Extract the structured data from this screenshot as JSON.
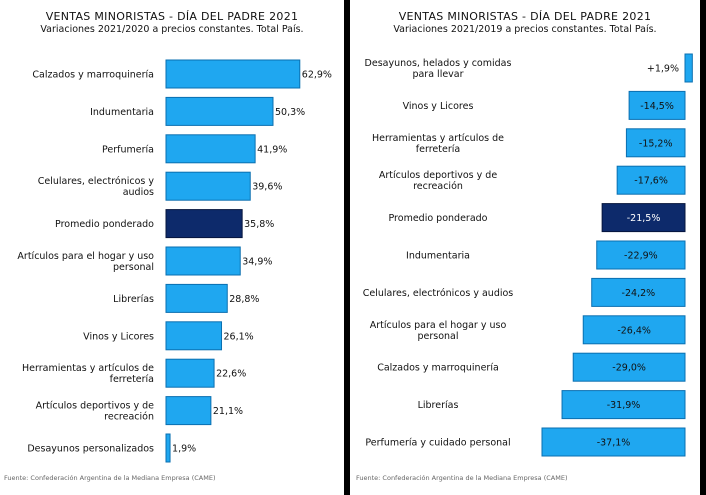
{
  "colors": {
    "bar": "#1fa7f0",
    "bar_stroke": "#0a6fb0",
    "highlight": "#0d2a6b",
    "highlight_stroke": "#05153d",
    "label": "#111111"
  },
  "chart_data": [
    {
      "type": "bar",
      "orientation": "horizontal",
      "title": "VENTAS MINORISTAS - DÍA DEL PADRE 2021",
      "subtitle": "Variaciones 2021/2020 a precios constantes. Total País.",
      "source": "Fuente: Confederación Argentina de la Mediana Empresa (CAME)",
      "categories": [
        [
          "Calzados y marroquinería"
        ],
        [
          "Indumentaria"
        ],
        [
          "Perfumería"
        ],
        [
          "Celulares, electrónicos y",
          "audios"
        ],
        [
          "Promedio ponderado"
        ],
        [
          "Artículos para el hogar y uso",
          "personal"
        ],
        [
          "Librerías"
        ],
        [
          "Vinos y Licores"
        ],
        [
          "Herramientas y artículos de",
          "ferretería"
        ],
        [
          "Artículos deportivos y de",
          "recreación"
        ],
        [
          "Desayunos personalizados"
        ]
      ],
      "values": [
        62.9,
        50.3,
        41.9,
        39.6,
        35.8,
        34.9,
        28.8,
        26.1,
        22.6,
        21.1,
        1.9
      ],
      "value_labels": [
        "62,9%",
        "50,3%",
        "41,9%",
        "39,6%",
        "35,8%",
        "34,9%",
        "28,8%",
        "26,1%",
        "22,6%",
        "21,1%",
        "1,9%"
      ],
      "highlight_index": 4,
      "xlim": [
        0,
        63
      ]
    },
    {
      "type": "bar",
      "orientation": "horizontal",
      "title": "VENTAS MINORISTAS - DÍA DEL PADRE 2021",
      "subtitle": "Variaciones 2021/2019 a precios constantes. Total País.",
      "source": "Fuente: Confederación Argentina de la Mediana Empresa (CAME)",
      "categories": [
        [
          "Desayunos, helados y comidas",
          "para llevar"
        ],
        [
          "Vinos y Licores"
        ],
        [
          "Herramientas y artículos de",
          "ferretería"
        ],
        [
          "Artículos deportivos y de",
          "recreación"
        ],
        [
          "Promedio ponderado"
        ],
        [
          "Indumentaria"
        ],
        [
          "Celulares, electrónicos y audios"
        ],
        [
          "Artículos para el hogar y uso",
          "personal"
        ],
        [
          "Calzados y marroquinería"
        ],
        [
          "Librerías"
        ],
        [
          "Perfumería y cuidado personal"
        ]
      ],
      "values": [
        1.9,
        -14.5,
        -15.2,
        -17.6,
        -21.5,
        -22.9,
        -24.2,
        -26.4,
        -29.0,
        -31.9,
        -37.1
      ],
      "value_labels": [
        "+1,9%",
        "-14,5%",
        "-15,2%",
        "-17,6%",
        "-21,5%",
        "-22,9%",
        "-24,2%",
        "-26,4%",
        "-29,0%",
        "-31,9%",
        "-37,1%"
      ],
      "highlight_index": 4,
      "xlim": [
        -37.1,
        2
      ]
    }
  ]
}
